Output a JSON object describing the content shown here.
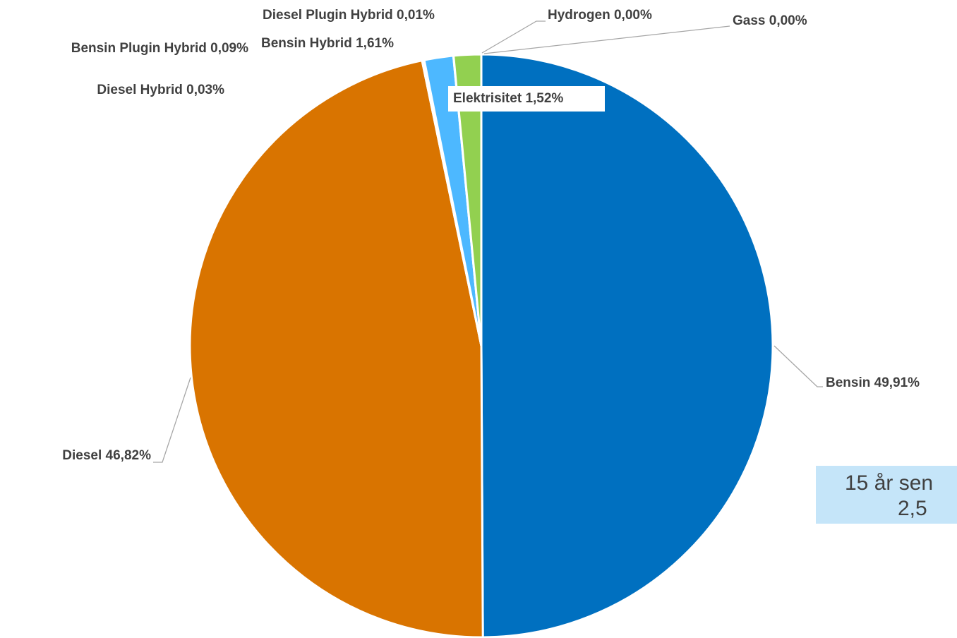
{
  "chart_data": {
    "type": "pie",
    "categories": [
      "Bensin",
      "Diesel",
      "Diesel Hybrid",
      "Bensin Plugin Hybrid",
      "Bensin Hybrid",
      "Diesel Plugin Hybrid",
      "Elektrisitet",
      "Hydrogen",
      "Gass"
    ],
    "values": [
      49.91,
      46.82,
      0.03,
      0.09,
      1.61,
      0.01,
      1.52,
      0.0,
      0.0
    ],
    "value_labels": [
      "49,91%",
      "46,82%",
      "0,03%",
      "0,09%",
      "1,61%",
      "0,01%",
      "1,52%",
      "0,00%",
      "0,00%"
    ],
    "colors": [
      "#0070c0",
      "#d97400",
      "#7f7f7f",
      "#2f5597",
      "#4db8ff",
      "#a5a5a5",
      "#92d050",
      "#ffc000",
      "#5b9bd5"
    ],
    "annotation": [
      "15 år sen",
      "2,5"
    ]
  }
}
